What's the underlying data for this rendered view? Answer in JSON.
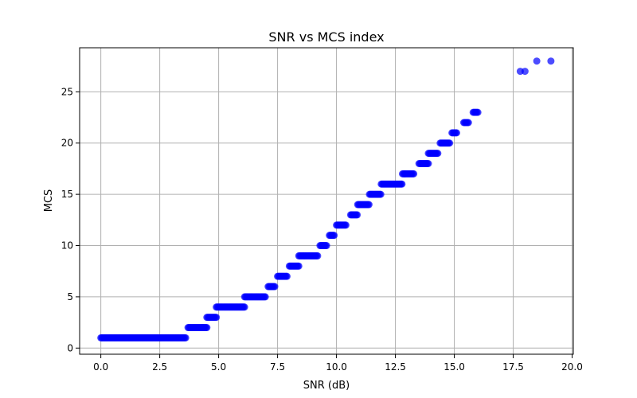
{
  "chart_data": {
    "type": "scatter",
    "title": "SNR vs MCS index",
    "xlabel": "SNR (dB)",
    "ylabel": "MCS",
    "xlim": [
      -0.9,
      20.05
    ],
    "ylim": [
      -0.6,
      29.3
    ],
    "xticks": [
      0.0,
      2.5,
      5.0,
      7.5,
      10.0,
      12.5,
      15.0,
      17.5,
      20.0
    ],
    "xtick_labels": [
      "0.0",
      "2.5",
      "5.0",
      "7.5",
      "10.0",
      "12.5",
      "15.0",
      "17.5",
      "20.0"
    ],
    "yticks": [
      0,
      5,
      10,
      15,
      20,
      25
    ],
    "ytick_labels": [
      "0",
      "5",
      "10",
      "15",
      "20",
      "25"
    ],
    "grid": true,
    "marker_color": "#0000ff",
    "marker_alpha": 0.7,
    "clusters": [
      {
        "mcs": 1,
        "snr_min": 0.0,
        "snr_max": 3.6
      },
      {
        "mcs": 2,
        "snr_min": 3.7,
        "snr_max": 4.5
      },
      {
        "mcs": 3,
        "snr_min": 4.5,
        "snr_max": 4.9
      },
      {
        "mcs": 4,
        "snr_min": 4.9,
        "snr_max": 6.1
      },
      {
        "mcs": 5,
        "snr_min": 6.1,
        "snr_max": 7.0
      },
      {
        "mcs": 6,
        "snr_min": 7.1,
        "snr_max": 7.4
      },
      {
        "mcs": 7,
        "snr_min": 7.5,
        "snr_max": 7.9
      },
      {
        "mcs": 8,
        "snr_min": 8.0,
        "snr_max": 8.4
      },
      {
        "mcs": 9,
        "snr_min": 8.4,
        "snr_max": 9.2
      },
      {
        "mcs": 10,
        "snr_min": 9.3,
        "snr_max": 9.6
      },
      {
        "mcs": 11,
        "snr_min": 9.7,
        "snr_max": 9.9
      },
      {
        "mcs": 12,
        "snr_min": 10.0,
        "snr_max": 10.4
      },
      {
        "mcs": 13,
        "snr_min": 10.6,
        "snr_max": 10.9
      },
      {
        "mcs": 14,
        "snr_min": 10.9,
        "snr_max": 11.4
      },
      {
        "mcs": 15,
        "snr_min": 11.4,
        "snr_max": 11.9
      },
      {
        "mcs": 16,
        "snr_min": 11.9,
        "snr_max": 12.8
      },
      {
        "mcs": 17,
        "snr_min": 12.8,
        "snr_max": 13.3
      },
      {
        "mcs": 18,
        "snr_min": 13.5,
        "snr_max": 13.9
      },
      {
        "mcs": 19,
        "snr_min": 13.9,
        "snr_max": 14.3
      },
      {
        "mcs": 20,
        "snr_min": 14.4,
        "snr_max": 14.8
      },
      {
        "mcs": 21,
        "snr_min": 14.9,
        "snr_max": 15.1
      },
      {
        "mcs": 22,
        "snr_min": 15.4,
        "snr_max": 15.6
      },
      {
        "mcs": 23,
        "snr_min": 15.8,
        "snr_max": 16.0
      }
    ],
    "points": [
      {
        "x": 17.8,
        "y": 27
      },
      {
        "x": 18.0,
        "y": 27
      },
      {
        "x": 18.5,
        "y": 28
      },
      {
        "x": 19.1,
        "y": 28
      }
    ]
  }
}
